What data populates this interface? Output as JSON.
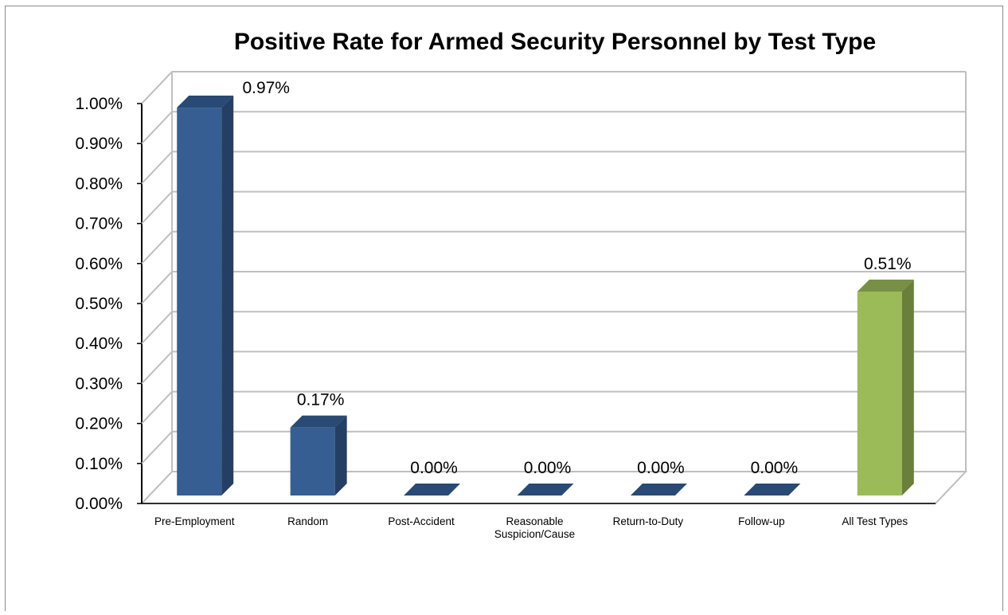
{
  "chart_data": {
    "type": "bar",
    "title": "Positive Rate for Armed Security Personnel by Test Type",
    "categories": [
      [
        "Pre-Employment"
      ],
      [
        "Random"
      ],
      [
        "Post-Accident"
      ],
      [
        "Reasonable",
        "Suspicion/Cause"
      ],
      [
        "Return-to-Duty"
      ],
      [
        "Follow-up"
      ],
      [
        "All Test Types"
      ]
    ],
    "values": [
      0.97,
      0.17,
      0.0,
      0.0,
      0.0,
      0.0,
      0.51
    ],
    "data_labels": [
      "0.97%",
      "0.17%",
      "0.00%",
      "0.00%",
      "0.00%",
      "0.00%",
      "0.51%"
    ],
    "yticks": [
      "0.00%",
      "0.10%",
      "0.20%",
      "0.30%",
      "0.40%",
      "0.50%",
      "0.60%",
      "0.70%",
      "0.80%",
      "0.90%",
      "1.00%"
    ],
    "ylim": [
      0,
      1.0
    ],
    "unit": "%",
    "grid": true,
    "legend": "none",
    "bar_colors": [
      "#365e92",
      "#365e92",
      "#365e92",
      "#365e92",
      "#365e92",
      "#365e92",
      "#9bbb59"
    ],
    "bar_side_colors": [
      "#243f63",
      "#243f63",
      "#243f63",
      "#243f63",
      "#243f63",
      "#243f63",
      "#6a7f3a"
    ],
    "bar_top_colors": [
      "#284a75",
      "#284a75",
      "#284a75",
      "#284a75",
      "#284a75",
      "#284a75",
      "#789046"
    ]
  }
}
